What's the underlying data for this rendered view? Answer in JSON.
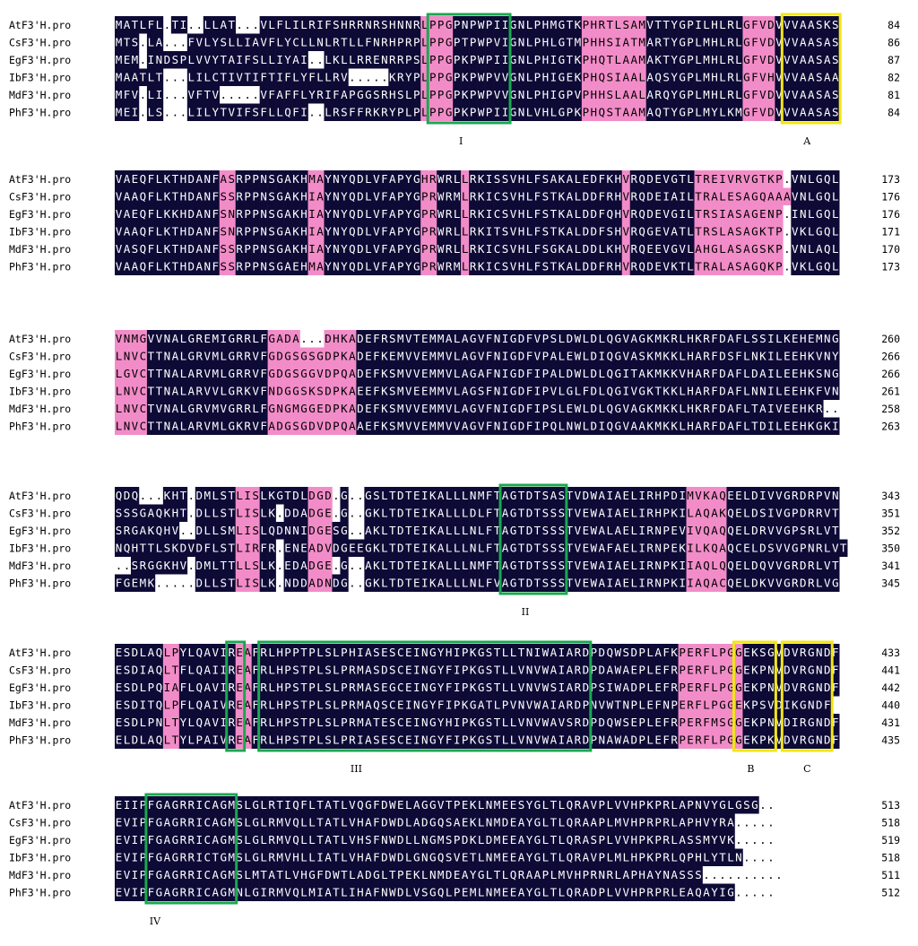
{
  "colors": {
    "identical": "#0d0a36",
    "similar": "#f28cc8",
    "box_green": "#1aa84f",
    "box_yellow": "#f2e614",
    "text_dark_bg": "#ffffff",
    "text_default": "#000000"
  },
  "species": [
    "AtF3'H.pro",
    "CsF3'H.pro",
    "EgF3'H.pro",
    "IbF3'H.pro",
    "MdF3'H.pro",
    "PhF3'H.pro"
  ],
  "blocks": [
    {
      "rows": [
        {
          "seq": "MATLFL.TI..LLAT...VLFLILRIFSHRRNRSHNNRLPPGPNPWPIIGNLPHMGTKPHRTLSAMVTTYGPILHLRLGFVDVVVAASKS",
          "end": "84"
        },
        {
          "seq": "MTS.LA...FVLYSLLIAVFLYCLLNLRTLLFNRHPRPLPPGPTPWPVIGNLPHLGTMPHHSIATMARTYGPLMHLRLGFVDVVVAASAS",
          "end": "86"
        },
        {
          "seq": "MEM.INDSPLVVYTAIFSLLIYAI..LKLLRRENRRPSLPPGPKPWPIIGNLPHIGTKPHQTLAAMAKTYGPLMHLRLGFVDVVVAASAS",
          "end": "87"
        },
        {
          "seq": "MAATLT...LILCTIVTIFTIFLYFLLRV.....KRYPLPPGPKPWPVVGNLPHIGEKPHQSIAALAQSYGPLMHLRLGFVHVVVAASAA",
          "end": "82"
        },
        {
          "seq": "MFV.LI...VFTV.....VFAFFLYRIFAPGGSRHSLPLPPGPKPWPVVGNLPHIGPVPHHSLAALARQYGPLMHLRLGFVDVVVAASAS",
          "end": "81"
        },
        {
          "seq": "MEI.LS...LILYTVIFSFLLQFI..LRSFFRKRYPLPLPPGPKPWPIIGNLVHLGPKPHQSTAAMAQTYGPLMYLKMGFVDVVVAASAS",
          "end": "84"
        }
      ],
      "sim": [
        "00000000000000000000000000000000000000111122220000000000001111111122222200000011110000000011",
        "00000000000000000000000000000000000000111122220000000000001111111122222200000011110000000011",
        "00000000000000000000000000000000000000111122220000000000001111111122222200000011110000000011",
        "00000000000000000000000000000000000000111122220000000000001111111122222200000011110000000011",
        "00000000000000000000000000000000000000111122220000000000001111111122222200000011110000000011",
        "00000000000000000000000000000000000000111122220000000000001111111122222200000011110000000011"
      ],
      "motif_labels": [
        "I",
        "A"
      ]
    },
    {
      "rows": [
        {
          "seq": "VAEQFLKTHDANFASRPPNSGAKHMAYNYQDLVFAPYGHRWRLLRKISSVHLFSAKALEDFKHVRQDEVGTLTREIVRVGTKP.VNLGQL",
          "end": "173"
        },
        {
          "seq": "VAAQFLKTHDANFSSRPPNSGAKHIAYNYQDLVFAPYGPRWRMLRKICSVHLFSTKALDDFRHVRQDEIAILTRALESAGQAAAVNLGQL",
          "end": "176"
        },
        {
          "seq": "VAEQFLKKHDANFSNRPPNSGAKHIAYNYQDLVFAPYGPRWRLLRKICSVHLFSTKALDDFQHVRQDEVGILTRSIASAGENP.INLGQL",
          "end": "176"
        },
        {
          "seq": "VAAQFLKTHDANFSNRPPNSGAKHIAYNYQDLVFAPYGPRWRLLRKITSVHLFSTKALDDFSHVRQGEVATLTRSLASAGKTP.VKLGQL",
          "end": "171"
        },
        {
          "seq": "VASQFLKTHDANFSSRPPNSGAKHIAYNYQDLVFAPYGPRWRLLRKICSVHLFSGKALDDLKHVRQEEVGVLAHGLASAGSKP.VNLAQL",
          "end": "170"
        },
        {
          "seq": "VAAQFLKTHDANFSSRPPNSGAEHMAYNYQDLVFAPYGPRWRMLRKICSVHLFSTKALDDFRHVRQDEVKTLTRALASAGQKP.VKLGQL",
          "end": "173"
        }
      ],
      "sim": [
        "00000000000001100000000011000000000000110001000000000000000000010000000011111111111100000000",
        "00000000000001100000000011000000000000110001000000000000000000010000000011111111111100000000",
        "00000000000001100000000011000000000000110001000000000000000000010000000011111111111100000000",
        "00000000000001100000000011000000000000110001000000000000000000010000000011111111111100000000",
        "00000000000001100000000011000000000000110001000000000000000000010000000011111111111100000000",
        "00000000000001100000000011000000000000110001000000000000000000010000000011111111111100000000"
      ],
      "motif_labels": []
    },
    {
      "rows": [
        {
          "seq": "VNMGVVNALGREMIGRRLFGADA...DHKADEFRSMVTEMMALAGVFNIGDFVPSLDWLDLQGVAGKMKRLHKRFDAFLSSILKEHEMNG",
          "end": "260"
        },
        {
          "seq": "LNVCTTNALGRVMLGRRVFGDGSGSGDPKADEFKEMVVEMMVLAGVFNIGDFVPALEWLDIQGVASKMKKLHARFDSFLNKILEEHKVNY",
          "end": "266"
        },
        {
          "seq": "LGVCTTNALARVMLGRRVFGDGSGGVDPQADEFKSMVVEMMVLAGAFNIGDFIPALDWLDLQGITAKMKKVHARFDAFLDAILEEHKSNG",
          "end": "266"
        },
        {
          "seq": "LNVCTTNALARVVLGRKVFNDGGSKSDPKAEEFKSMVEEMMVLAGSFNIGDFIPVLGLFDLQGIVGKTKKLHARFDAFLNNILEEHKFVN",
          "end": "261"
        },
        {
          "seq": "LNVCTVNALGRVMVGRRLFGNGMGGEDPKADEFKSMVVEMMVLAGVFNIGDFIPSLEWLDLQGVAGKMKKLHKRFDAFLTAIVEEHKR..",
          "end": "258"
        },
        {
          "seq": "LNVCTTNALARVMLGKRVFADGSGDVDPQAAEFKSMVVEMMVVAGVFNIGDFIPQLNWLDIQGVAAKMKKLHARFDAFLTDILEEHKGKI",
          "end": "263"
        }
      ],
      "sim": [
        "11110000000000000001111111111100000000000000000000000000000000000000000000000000000000000000",
        "11110000000000000001111111111100000000000000000000000000000000000000000000000000000000000000",
        "11110000000000000001111111111100000000000000000000000000000000000000000000000000000000000000",
        "11110000000000000001111111111100000000000000000000000000000000000000000000000000000000000000",
        "11110000000000000001111111111100000000000000000000000000000000000000000000000000000000000000",
        "11110000000000000001111111111100000000000000000000000000000000000000000000000000000000000000"
      ],
      "motif_labels": []
    },
    {
      "rows": [
        {
          "seq": "QDQ...KHT.DMLSTLISLKGTDLDGD.G..GSLTDTEIKALLLNMFTAGTDTSASTVDWAIAELIRHPDIMVKAQEELDIVVGRDRPVN",
          "end": "343"
        },
        {
          "seq": "SSSGAQKHT.DLLSTLISLK.DDADGE.G..GKLTDTEIKALLLDLFTAGTDTSSSTVEWAIAELIRHPKILAQAKQELDSIVGPDRRVT",
          "end": "351"
        },
        {
          "seq": "SRGAKQHV..DLLSMLISLQDNNIDGESG..AKLTDTEIKALLLNLFTAGTDTSSSTVEWALAELIRNPEVIVQAQQELDRVVGPSRLVT",
          "end": "352"
        },
        {
          "seq": "NQHTTLSKDVDFLSTLIRFR.ENEADVDGEEGKLTDTEIKALLLNLFTAGTDTSSSTVEWAFAELIRNPEKILKQAQCELDSVVGPNRLVT",
          "end": "350"
        },
        {
          "seq": "..SRGGKHV.DMLTTLLSLK.EDADGE.G..AKLTDTEIKALLLNMFTAGTDTSSSTVEWAIAELIRNPKIIAQLQQELDQVVGRDRLVT",
          "end": "341"
        },
        {
          "seq": "FGEMK.....DLLSTLISLK.NDDADNDG..GKLTDTEIKALLLNLFVAGTDTSSSTVEWAIAELIRNPKIIAQACQELDKVVGRDRLVG",
          "end": "345"
        }
      ],
      "sim": [
        "00000000000000011100000011100000000000000000000000000000000000000000000111110000000000000000",
        "00000000000000011100000011100000000000000000000000000000000000000000000111110000000000000000",
        "00000000000000011100000011100000000000000000000000000000000000000000000111110000000000000000",
        "00000000000000011100000011100000000000000000000000000000000000000000000111110000000000000000",
        "00000000000000011100000011100000000000000000000000000000000000000000000111110000000000000000",
        "00000000000000011100000011100000000000000000000000000000000000000000000111110000000000000000"
      ],
      "motif_labels": [
        "II"
      ]
    },
    {
      "rows": [
        {
          "seq": "ESDLAQLPYLQAVIREAFRLHPPTPLSLPHIASESCEINGYHIPKGSTLLTNIWAIARDPDQWSDPLAFKPERFLPGGEKSGVDVRGNDF",
          "end": "433"
        },
        {
          "seq": "ESDIAQLTFLQAIIREAFRLHPSTPLSLPRMASDSCEINGYFIPKGSTLLVNVWAIARDPDAWAEPLEFRPERFLPGGEKPNVDVRGNDF",
          "end": "441"
        },
        {
          "seq": "ESDLPQIAFLQAVIREAFRLHPSTPLSLPRMASEGCEINGYFIPKGSTLLVNVWSIARDPSIWADPLEFRPERFLPGGEKPNVDVRGNDF",
          "end": "442"
        },
        {
          "seq": "ESDITQLPFLQAIVREAFRLHPSTPLSLPRMAQSCEINGYFIPKGATLPVNVWAIARDPNVWTNPLEFNPERFLPGGEKPSVDIKGNDF",
          "end": "440"
        },
        {
          "seq": "ESDLPNLTYLQAVIREAFRLHPSTPLSLPRMATESCEINGYHIPKGSTLLVNVWAVSRDPDQWSEPLEFRPERFMSGGEKPNVDIRGNDF",
          "end": "431"
        },
        {
          "seq": "ELDLAQLTYLPAIVREAFRLHPSTPLSLPRIASESCEINGYFIPKGSTLLVNVWAIARDPNAWADPLEFRPERFLPGGEKPKVDVRGNDF",
          "end": "435"
        }
      ],
      "sim": [
        "00000011000000011000000000000000000000000000000000000000000000000000001111111100000000000000",
        "00000011000000011000000000000000000000000000000000000000000000000000001111111100000000000000",
        "00000011000000011000000000000000000000000000000000000000000000000000001111111100000000000000",
        "00000011000000011000000000000000000000000000000000000000000000000000001111111100000000000000",
        "00000011000000011000000000000000000000000000000000000000000000000000001111111100000000000000",
        "00000011000000011000000000000000000000000000000000000000000000000000001111111100000000000000"
      ],
      "motif_labels": [
        "III",
        "B",
        "C"
      ]
    },
    {
      "rows": [
        {
          "seq": "EIIPFGAGRRICAGMSLGLRTIQFLTATLVQGFDWELAGGVTPEKLNMEESYGLTLQRAVPLVVHPKPRLAPNVYGLGSG..",
          "end": "513"
        },
        {
          "seq": "EVIPFGAGRRICAGMSLGLRMVQLLTATLVHAFDWDLADGQSAEKLNMDEAYGLTLQRAAPLMVHPRPRLAPHVYRA.....",
          "end": "518"
        },
        {
          "seq": "EVIPFGAGRRICAGMSLGLRMVQLLTATLVHSFNWDLLNGMSPDKLDMEEAYGLTLQRASPLVVHPKPRLASSMYVK.....",
          "end": "519"
        },
        {
          "seq": "EVIPFGAGRRICTGMSLGLRMVHLLIATLVHAFDWDLGNGQSVETLNMEEAYGLTLQRAVPLMLHPKPRLQPHLYTLN....",
          "end": "518"
        },
        {
          "seq": "EVIPFGAGRRICAGMSLMTATLVHGFDWTLADGLTPEKLNMDEAYGLTLQRAAPLMVHPRNRLAPHAYNASSS..........",
          "end": "511"
        },
        {
          "seq": "EVIPFGAGRRICAGMNLGIRMVQLMIATLIHAFNWDLVSGQLPEMLNMEEAYGLTLQRADPLVVHPRPRLEAQAYIG.....",
          "end": "512"
        }
      ],
      "sim": [
        "00000000000000000000000000000000000000000000000000000000000000000000000000000000000000000000",
        "00000000000000000000000000000000000000000000000000000000000000000000000000000000000000000000",
        "00000000000000000000000000000000000000000000000000000000000000000000000000000000000000000000",
        "00000000000000000000000000000000000000000000000000000000000000000000000000000000000000000000",
        "00000000000000000000000000000000000000000000000000000000000000000000000000000000000000000000",
        "00000000000000000000000000000000000000000000000000000000000000000000000000000000000000000000"
      ],
      "motif_labels": [
        "IV"
      ]
    }
  ]
}
